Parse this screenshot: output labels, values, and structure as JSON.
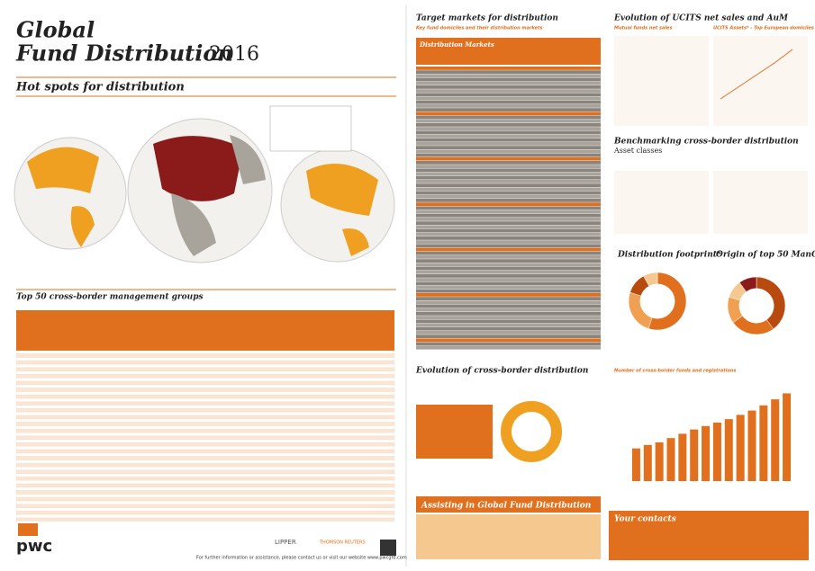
{
  "header": {
    "title_line1": "Global",
    "title_line2": "Fund Distribution",
    "year": "2016"
  },
  "sections": {
    "hot_spots": "Hot spots for distribution",
    "top50": "Top 50 cross-border management groups",
    "target": "Target markets for distribution",
    "target_sub": "Key fund domiciles and their distribution markets",
    "markets": "Distribution Markets",
    "ucits": "Evolution of UCITS net sales and AuM",
    "ucits_sub1": "Mutual funds net sales",
    "ucits_sub2": "UCITS Assets* - Top European domiciles",
    "bench": "Benchmarking cross-border distribution",
    "bench_sub": "Asset classes",
    "footprint": "Distribution footprint*",
    "origin": "Origin of top 50 ManCo",
    "evolution": "Evolution of cross-border distribution",
    "registrations": "Number of cross-border funds and registrations",
    "assist": "Assisting in Global Fund Distribution",
    "contacts": "Your contacts"
  },
  "footer": {
    "logo": "pwc",
    "lipper": "LIPPER",
    "reuters": "THOMSON REUTERS",
    "info": "For further information or assistance, please contact us or visit our website www.pwcgfd.com"
  },
  "chart_data": [
    {
      "type": "bar",
      "color": "#e0701e",
      "values": [
        38000,
        42000,
        45000,
        50000,
        55000,
        60000,
        64000,
        68000,
        72000,
        77000,
        82000,
        88000,
        95000,
        102000
      ],
      "ylim": [
        0,
        115000
      ]
    },
    {
      "type": "pie",
      "colors": [
        "#e0701e",
        "#f0a050",
        "#b84a10",
        "#f5c890"
      ],
      "values": [
        55,
        25,
        12,
        8
      ]
    },
    {
      "type": "pie",
      "colors": [
        "#b84a10",
        "#e0701e",
        "#f0a050",
        "#f5c890",
        "#8b1a1a"
      ],
      "values": [
        40,
        25,
        15,
        10,
        10
      ]
    }
  ]
}
